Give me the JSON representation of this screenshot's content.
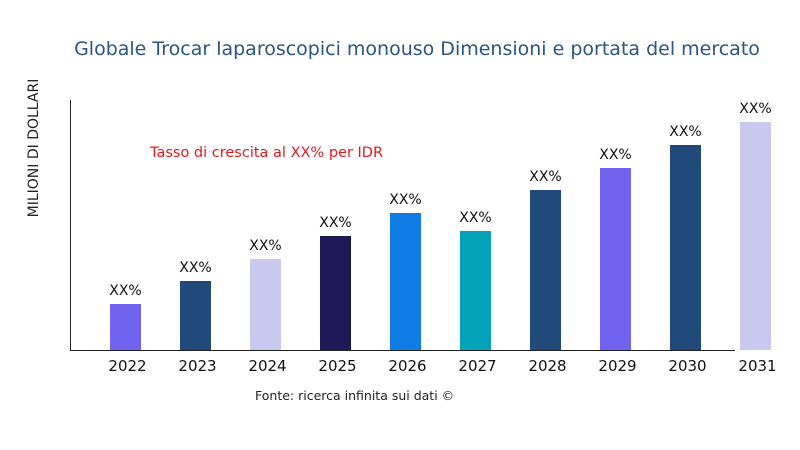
{
  "chart_data": {
    "type": "bar",
    "title": "Globale Trocar laparoscopici monouso Dimensioni e portata del mercato",
    "xlabel": "",
    "ylabel": "MILIONI DI DOLLARI",
    "annotation": "Tasso di crescita al XX% per IDR",
    "source": "Fonte: ricerca infinita sui dati ©",
    "categories": [
      "2022",
      "2023",
      "2024",
      "2025",
      "2026",
      "2027",
      "2028",
      "2029",
      "2030",
      "2031"
    ],
    "values": [
      46,
      69,
      91,
      114,
      137,
      119,
      160,
      182,
      205,
      228
    ],
    "value_units": "relative bar height (no y-axis scale printed)",
    "data_labels": [
      "XX%",
      "XX%",
      "XX%",
      "XX%",
      "XX%",
      "XX%",
      "XX%",
      "XX%",
      "XX%",
      "XX%"
    ],
    "colors": [
      "#7262f0",
      "#1f4a7a",
      "#c9c9f0",
      "#1e1856",
      "#0f7be4",
      "#04a2b8",
      "#1f4a7a",
      "#7262f0",
      "#1f4a7a",
      "#c9c9f0"
    ],
    "ylim": [
      0,
      250
    ],
    "grid": false,
    "legend": "none"
  }
}
